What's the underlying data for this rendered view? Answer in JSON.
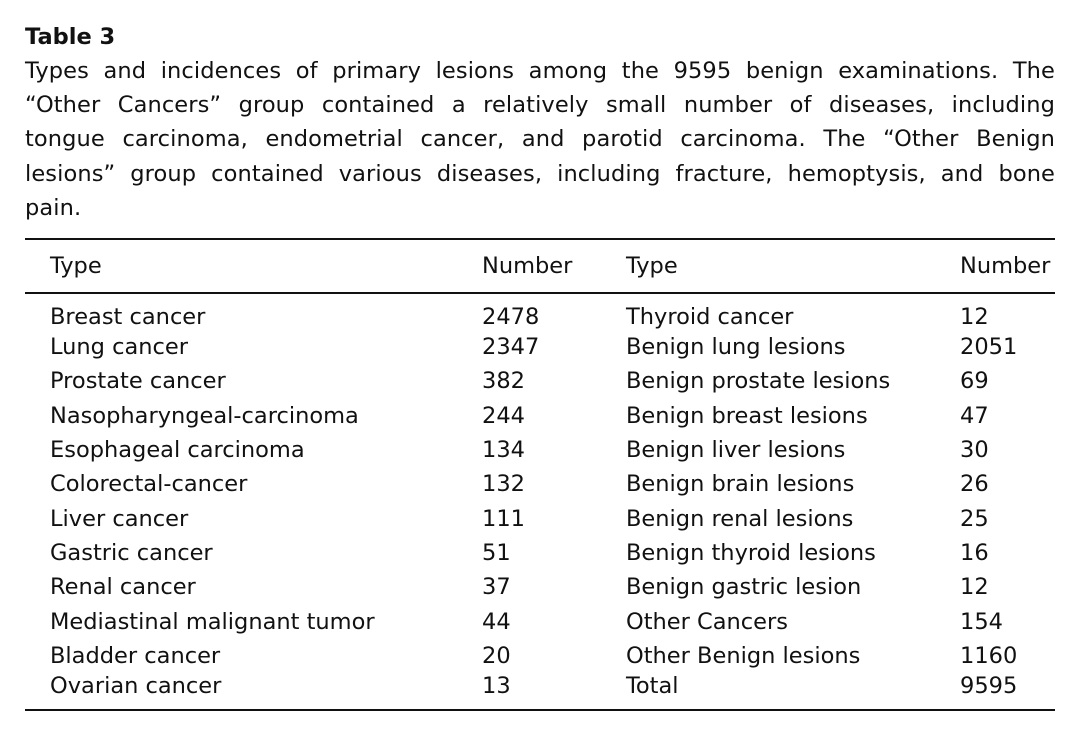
{
  "table_title": "Table 3",
  "caption": "Types and incidences of primary lesions among the 9595 benign examinations. The “Other Cancers” group contained a relatively small number of diseases, including tongue carcinoma, endometrial cancer, and parotid carcinoma. The “Other Benign lesions” group contained various diseases, including fracture, hemoptysis, and bone pain.",
  "headers": [
    "Type",
    "Number",
    "Type",
    "Number"
  ],
  "rows": [
    [
      "Breast cancer",
      "2478",
      "Thyroid cancer",
      "12"
    ],
    [
      "Lung cancer",
      "2347",
      "Benign lung lesions",
      "2051"
    ],
    [
      "Prostate cancer",
      "382",
      "Benign prostate lesions",
      "69"
    ],
    [
      "Nasopharyngeal-carcinoma",
      "244",
      "Benign breast lesions",
      "47"
    ],
    [
      "Esophageal carcinoma",
      "134",
      "Benign liver lesions",
      "30"
    ],
    [
      "Colorectal-cancer",
      "132",
      "Benign brain lesions",
      "26"
    ],
    [
      "Liver cancer",
      "111",
      "Benign renal lesions",
      "25"
    ],
    [
      "Gastric cancer",
      "51",
      "Benign thyroid lesions",
      "16"
    ],
    [
      "Renal cancer",
      "37",
      "Benign gastric lesion",
      "12"
    ],
    [
      "Mediastinal malignant tumor",
      "44",
      "Other Cancers",
      "154"
    ],
    [
      "Bladder cancer",
      "20",
      "Other Benign lesions",
      "1160"
    ],
    [
      "Ovarian cancer",
      "13",
      "Total",
      "9595"
    ]
  ]
}
